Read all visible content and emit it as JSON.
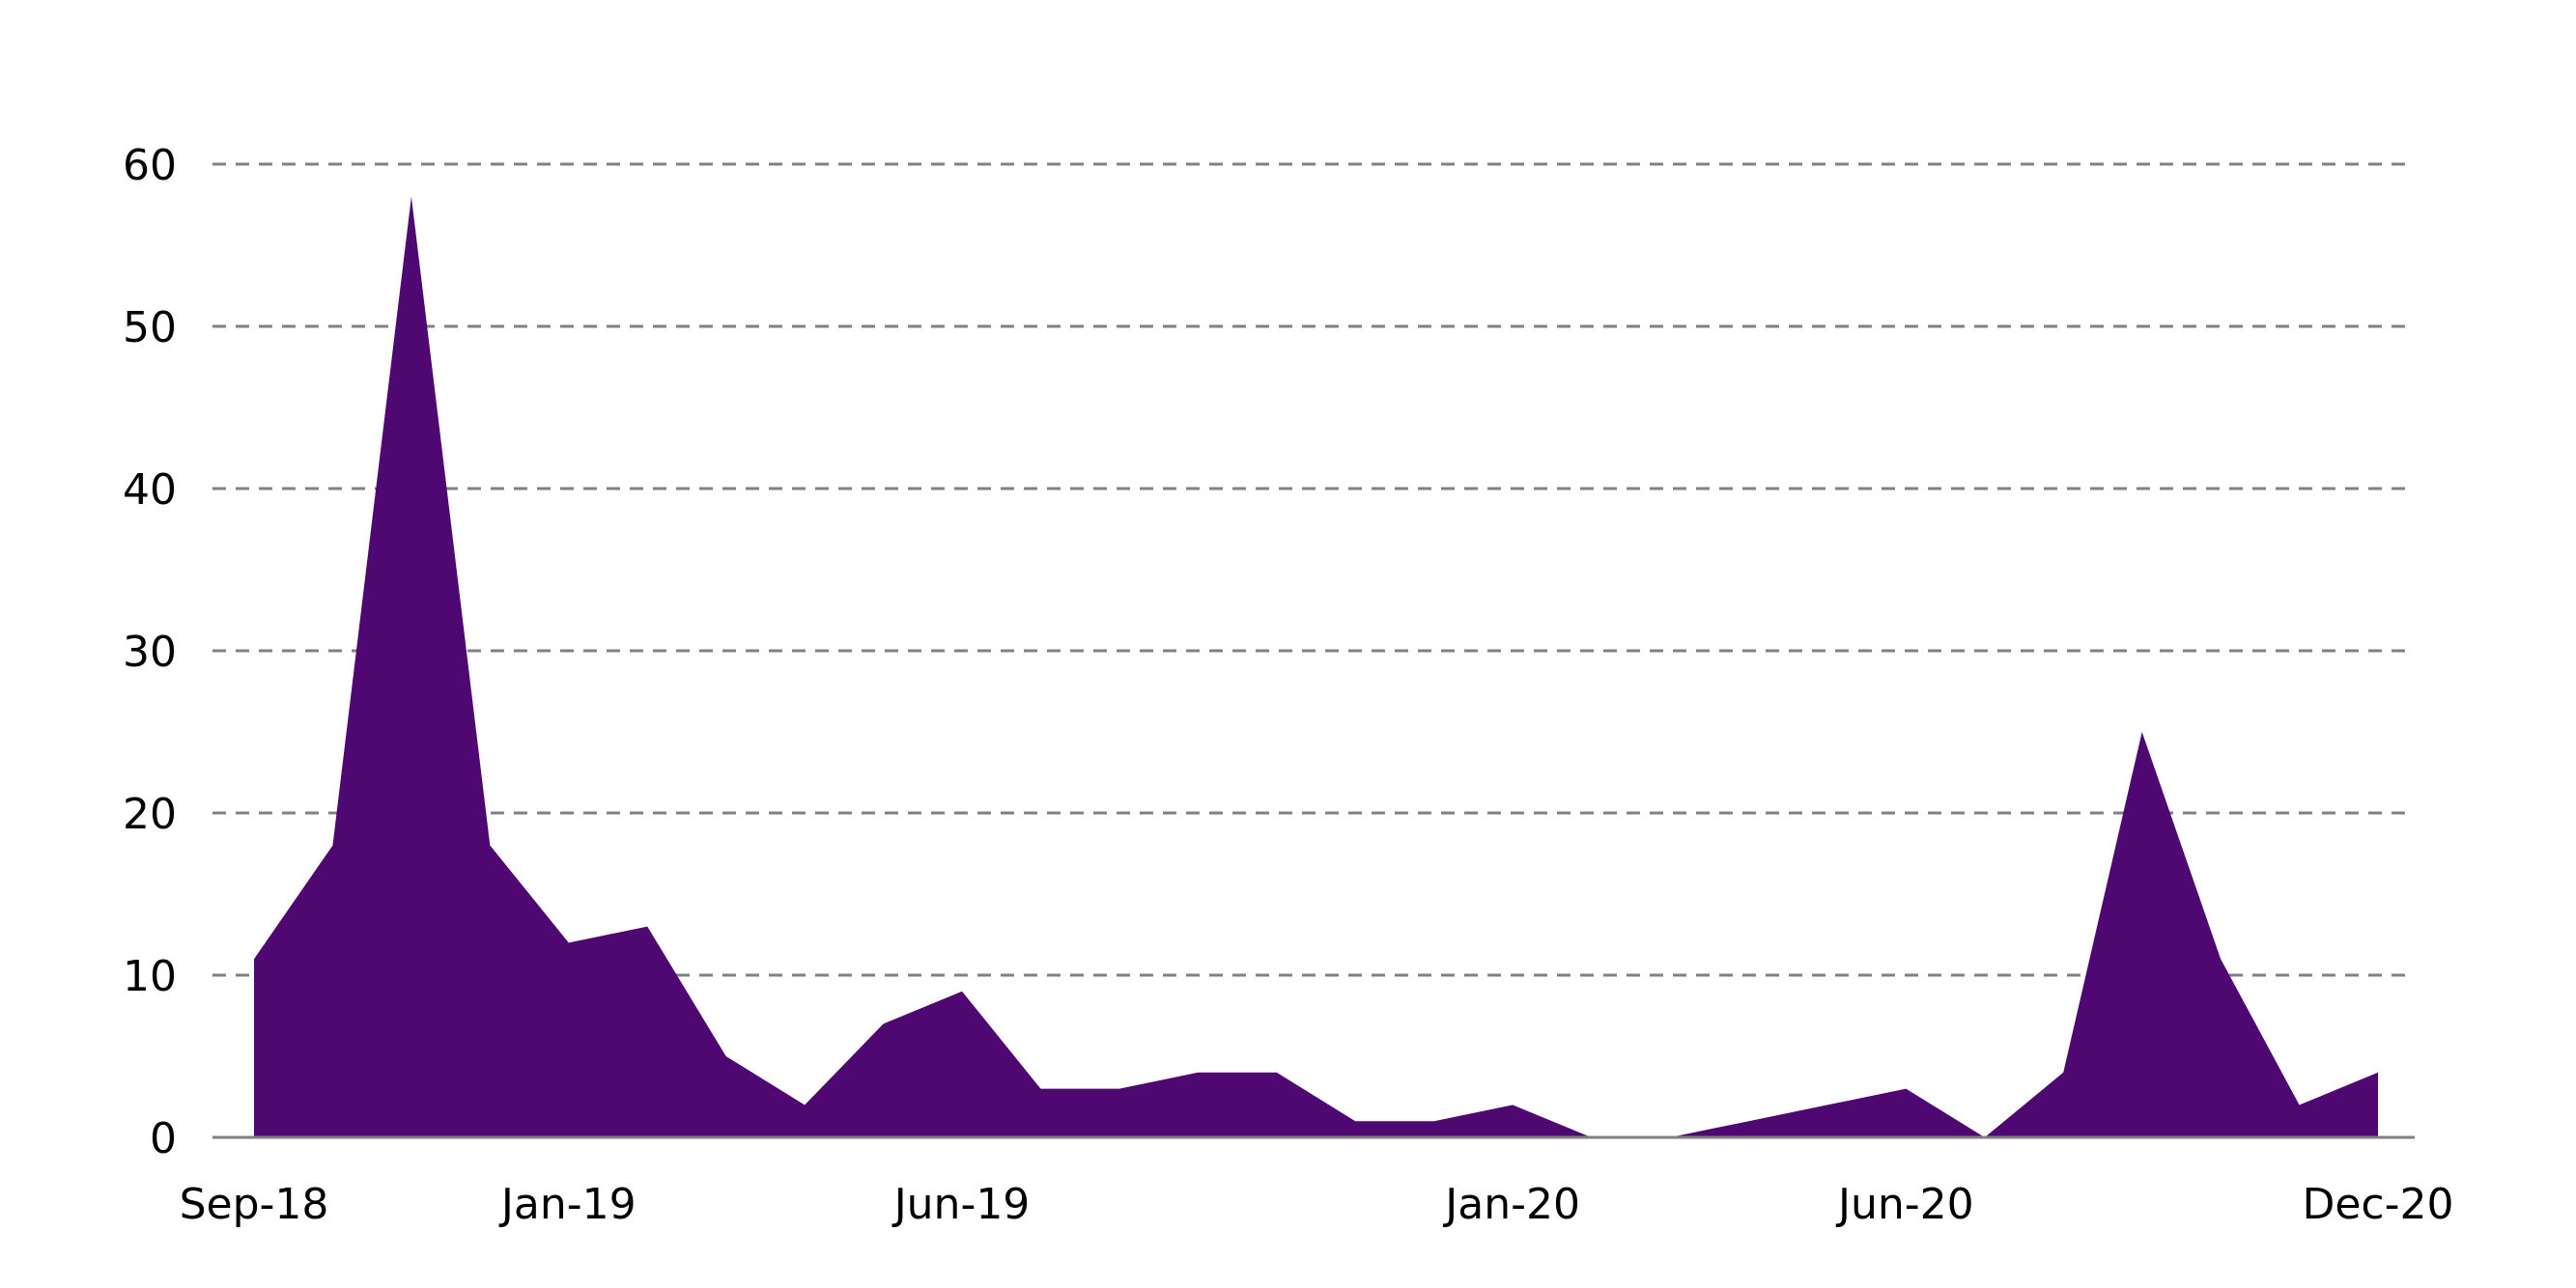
{
  "chart_data": {
    "type": "area",
    "title": "",
    "xlabel": "",
    "ylabel": "",
    "x": [
      "Sep-18",
      "Oct-18",
      "Nov-18",
      "Dec-18",
      "Jan-19",
      "Feb-19",
      "Mar-19",
      "Apr-19",
      "May-19",
      "Jun-19",
      "Jul-19",
      "Aug-19",
      "Sep-19",
      "Oct-19",
      "Nov-19",
      "Dec-19",
      "Jan-20",
      "Feb-20",
      "Mar-20",
      "Apr-20",
      "May-20",
      "Jun-20",
      "Jul-20",
      "Aug-20",
      "Sep-20",
      "Oct-20",
      "Nov-20",
      "Dec-20"
    ],
    "series": [
      {
        "values": [
          11,
          18,
          58,
          18,
          12,
          13,
          5,
          2,
          7,
          9,
          3,
          3,
          4,
          4,
          1,
          1,
          2,
          0,
          0,
          1,
          2,
          3,
          0,
          4,
          25,
          11,
          2,
          4
        ],
        "color": "#4f0872"
      }
    ],
    "x_tick_labels": [
      "Sep-18",
      "Jan-19",
      "Jun-19",
      "Jan-20",
      "Jun-20",
      "Dec-20"
    ],
    "y_ticks": [
      "0",
      "10",
      "20",
      "30",
      "40",
      "50",
      "60"
    ],
    "ylim": [
      0,
      60
    ],
    "grid": true,
    "legend": "none"
  }
}
